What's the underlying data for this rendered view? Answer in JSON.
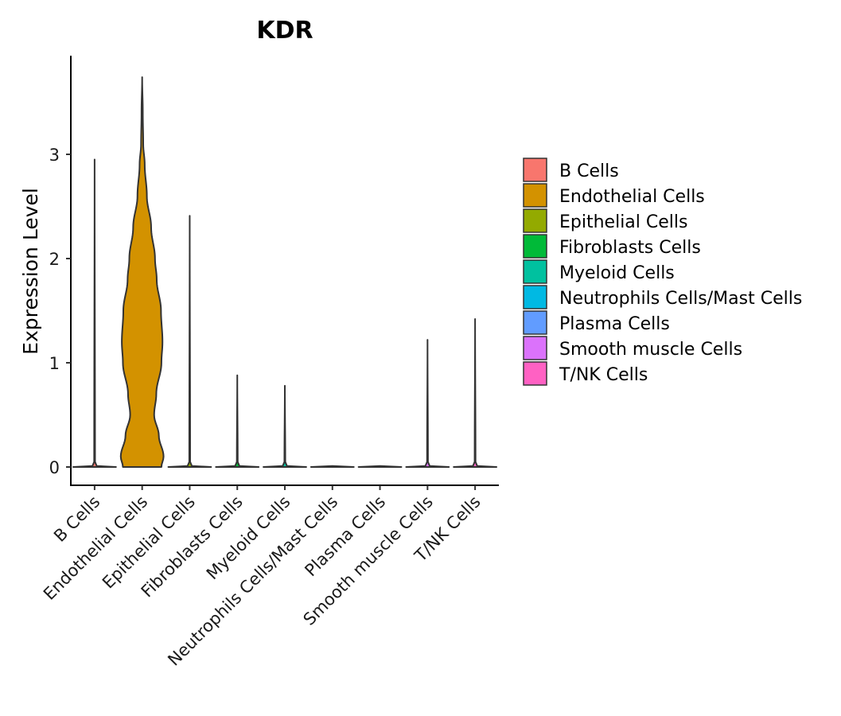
{
  "chart_data": {
    "type": "violin",
    "title": "KDR",
    "xlabel": "",
    "ylabel": "Expression Level",
    "ylim": [
      -0.03,
      3.92
    ],
    "yticks": [
      0,
      1,
      2,
      3
    ],
    "grid": false,
    "legend_position": "right",
    "categories": [
      "B Cells",
      "Endothelial Cells",
      "Epithelial Cells",
      "Fibroblasts Cells",
      "Myeloid Cells",
      "Neutrophils Cells/Mast Cells",
      "Plasma Cells",
      "Smooth muscle Cells",
      "T/NK Cells"
    ],
    "colors": [
      "#F8766D",
      "#D39200",
      "#93AA00",
      "#00BA38",
      "#00C19F",
      "#00B9E3",
      "#619CFF",
      "#DB72FB",
      "#FF61C3"
    ],
    "max_values": [
      2.95,
      3.74,
      2.41,
      0.88,
      0.78,
      0.0,
      0.0,
      1.22,
      1.42
    ],
    "density_profiles": [
      [
        [
          0,
          1.0
        ],
        [
          0.01,
          0.1
        ],
        [
          0.05,
          0.02
        ],
        [
          2.95,
          0.0
        ]
      ],
      [
        [
          0,
          0.9
        ],
        [
          0.1,
          1.0
        ],
        [
          0.3,
          0.78
        ],
        [
          0.5,
          0.56
        ],
        [
          0.7,
          0.66
        ],
        [
          1.0,
          0.9
        ],
        [
          1.2,
          0.95
        ],
        [
          1.5,
          0.88
        ],
        [
          1.8,
          0.68
        ],
        [
          2.0,
          0.6
        ],
        [
          2.3,
          0.42
        ],
        [
          2.6,
          0.22
        ],
        [
          2.9,
          0.12
        ],
        [
          3.1,
          0.05
        ],
        [
          3.4,
          0.03
        ],
        [
          3.74,
          0.0
        ]
      ],
      [
        [
          0,
          1.0
        ],
        [
          0.01,
          0.1
        ],
        [
          0.05,
          0.02
        ],
        [
          2.41,
          0.0
        ]
      ],
      [
        [
          0,
          1.0
        ],
        [
          0.01,
          0.1
        ],
        [
          0.05,
          0.02
        ],
        [
          0.88,
          0.0
        ]
      ],
      [
        [
          0,
          1.0
        ],
        [
          0.01,
          0.1
        ],
        [
          0.05,
          0.02
        ],
        [
          0.78,
          0.0
        ]
      ],
      [
        [
          0,
          1.0
        ],
        [
          0.01,
          0.0
        ]
      ],
      [
        [
          0,
          1.0
        ],
        [
          0.01,
          0.0
        ]
      ],
      [
        [
          0,
          1.0
        ],
        [
          0.01,
          0.1
        ],
        [
          0.05,
          0.02
        ],
        [
          1.22,
          0.0
        ]
      ],
      [
        [
          0,
          1.0
        ],
        [
          0.01,
          0.1
        ],
        [
          0.05,
          0.02
        ],
        [
          1.42,
          0.0
        ]
      ]
    ],
    "legend": [
      "B Cells",
      "Endothelial Cells",
      "Epithelial Cells",
      "Fibroblasts Cells",
      "Myeloid Cells",
      "Neutrophils Cells/Mast Cells",
      "Plasma Cells",
      "Smooth muscle Cells",
      "T/NK Cells"
    ]
  }
}
